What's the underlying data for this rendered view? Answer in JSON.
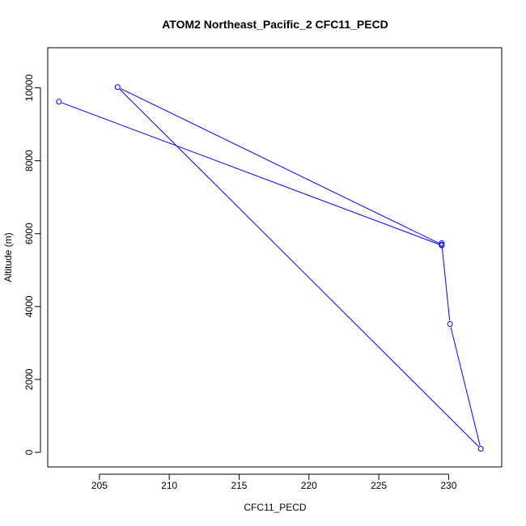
{
  "chart_data": {
    "type": "line",
    "title": "ATOM2 Northeast_Pacific_2 CFC11_PECD",
    "xlabel": "CFC11_PECD",
    "ylabel": "Altitude (m)",
    "xlim": [
      201.3,
      233.8
    ],
    "ylim": [
      -400,
      11100
    ],
    "x_ticks": [
      205,
      210,
      215,
      220,
      225,
      230
    ],
    "y_ticks": [
      0,
      2000,
      4000,
      6000,
      8000,
      10000
    ],
    "x_tick_labels": [
      "205",
      "210",
      "215",
      "220",
      "225",
      "230"
    ],
    "y_tick_labels": [
      "0",
      "2000",
      "4000",
      "6000",
      "8000",
      "10000"
    ],
    "grid": false,
    "legend": "none",
    "series": [
      {
        "color": "#0000ff",
        "marker": "open-circle",
        "x": [
          202.1,
          229.5,
          229.5,
          230.1,
          232.3,
          206.3,
          229.5
        ],
        "y": [
          9620,
          5680,
          5740,
          3520,
          100,
          10020,
          5700
        ]
      }
    ]
  }
}
